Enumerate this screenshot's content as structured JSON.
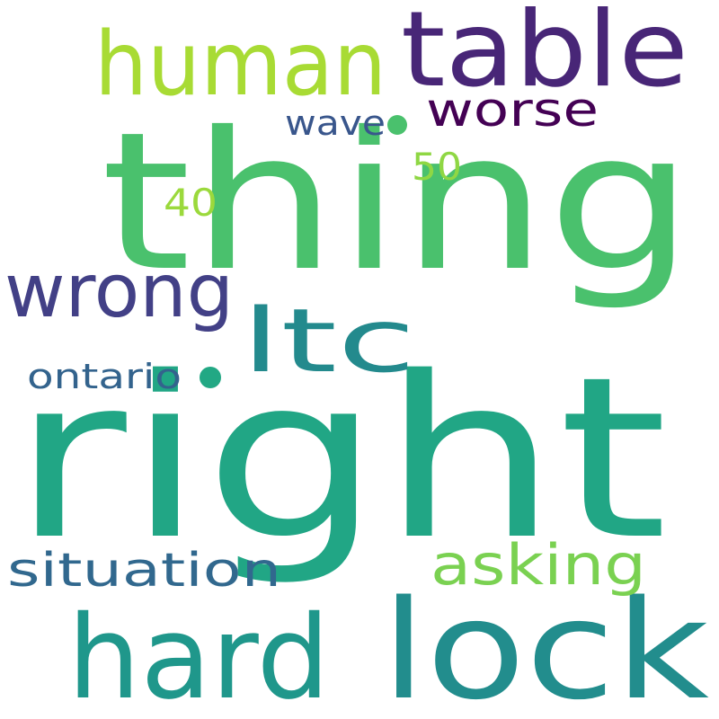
{
  "cloud": {
    "background": "#ffffff",
    "words": [
      {
        "text": "right",
        "color": "#21a685"
      },
      {
        "text": "thing",
        "color": "#4ac16d"
      },
      {
        "text": "lock",
        "color": "#228d8d"
      },
      {
        "text": "hard",
        "color": "#1f978b"
      },
      {
        "text": "table",
        "color": "#482677"
      },
      {
        "text": "human",
        "color": "#a8db34"
      },
      {
        "text": "wrong",
        "color": "#424086"
      },
      {
        "text": "ltc",
        "color": "#238a8d"
      },
      {
        "text": "asking",
        "color": "#7ad151"
      },
      {
        "text": "situation",
        "color": "#31688e"
      },
      {
        "text": "worse",
        "color": "#440154"
      },
      {
        "text": "ontario",
        "color": "#33638d"
      },
      {
        "text": "wave",
        "color": "#39568c"
      },
      {
        "text": "50",
        "color": "#8fd744"
      },
      {
        "text": "40",
        "color": "#9bd93c"
      }
    ],
    "dots": [
      {
        "color": "#4ac16d"
      },
      {
        "color": "#22a884"
      }
    ]
  }
}
